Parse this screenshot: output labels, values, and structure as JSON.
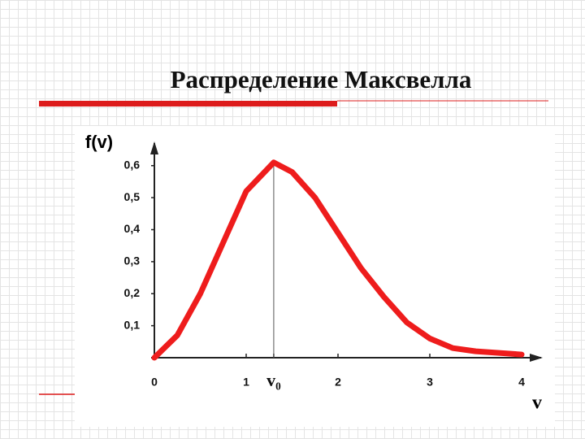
{
  "chart_data": {
    "type": "line",
    "title": "Распределение Максвелла",
    "y_label": "f(v)",
    "x_label": "v",
    "x": [
      0,
      0.25,
      0.5,
      0.75,
      1,
      1.3,
      1.5,
      1.75,
      2,
      2.25,
      2.5,
      2.75,
      3,
      3.25,
      3.5,
      4
    ],
    "series": [
      {
        "color": "#ee1c1c",
        "values": [
          0,
          0.07,
          0.2,
          0.36,
          0.52,
          0.61,
          0.58,
          0.5,
          0.39,
          0.28,
          0.19,
          0.11,
          0.06,
          0.03,
          0.02,
          0.01
        ]
      }
    ],
    "xlim": [
      0,
      4.23
    ],
    "ylim": [
      0,
      0.673
    ],
    "xticks": [
      0,
      1,
      {
        "value": 1.3,
        "label": "v₀"
      },
      2,
      3,
      4
    ],
    "yticks": [
      {
        "value": 0.1,
        "label": "0,1"
      },
      {
        "value": 0.2,
        "label": "0,2"
      },
      {
        "value": 0.3,
        "label": "0,3"
      },
      {
        "value": 0.4,
        "label": "0,4"
      },
      {
        "value": 0.5,
        "label": "0,5"
      },
      {
        "value": 0.6,
        "label": "0,6"
      }
    ]
  }
}
